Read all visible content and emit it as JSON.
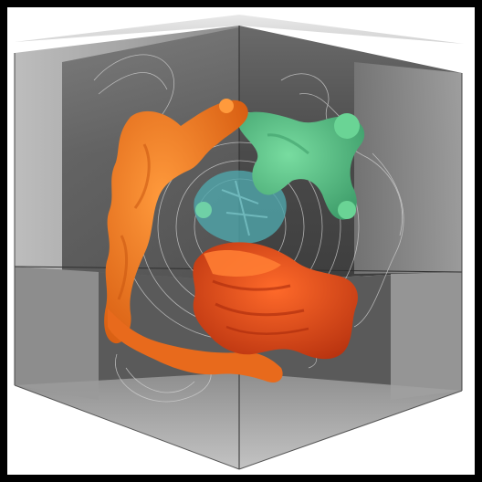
{
  "scene": {
    "frame_border_color": "#000000",
    "background_color": "#ffffff",
    "box": {
      "back_wall_color": "#555555",
      "side_wall_color": "#8a8a8a",
      "floor_color": "#a9a9a9",
      "edge_color": "#3a3a3a"
    },
    "blobs": [
      {
        "name": "orange-lobe",
        "color": "#f07a22"
      },
      {
        "name": "green-lobe",
        "color": "#5cc48a"
      },
      {
        "name": "red-lobe",
        "color": "#e4501f"
      },
      {
        "name": "teal-core",
        "color": "#4fa6ab"
      }
    ],
    "wireframe_color": "#cfcfcf"
  }
}
